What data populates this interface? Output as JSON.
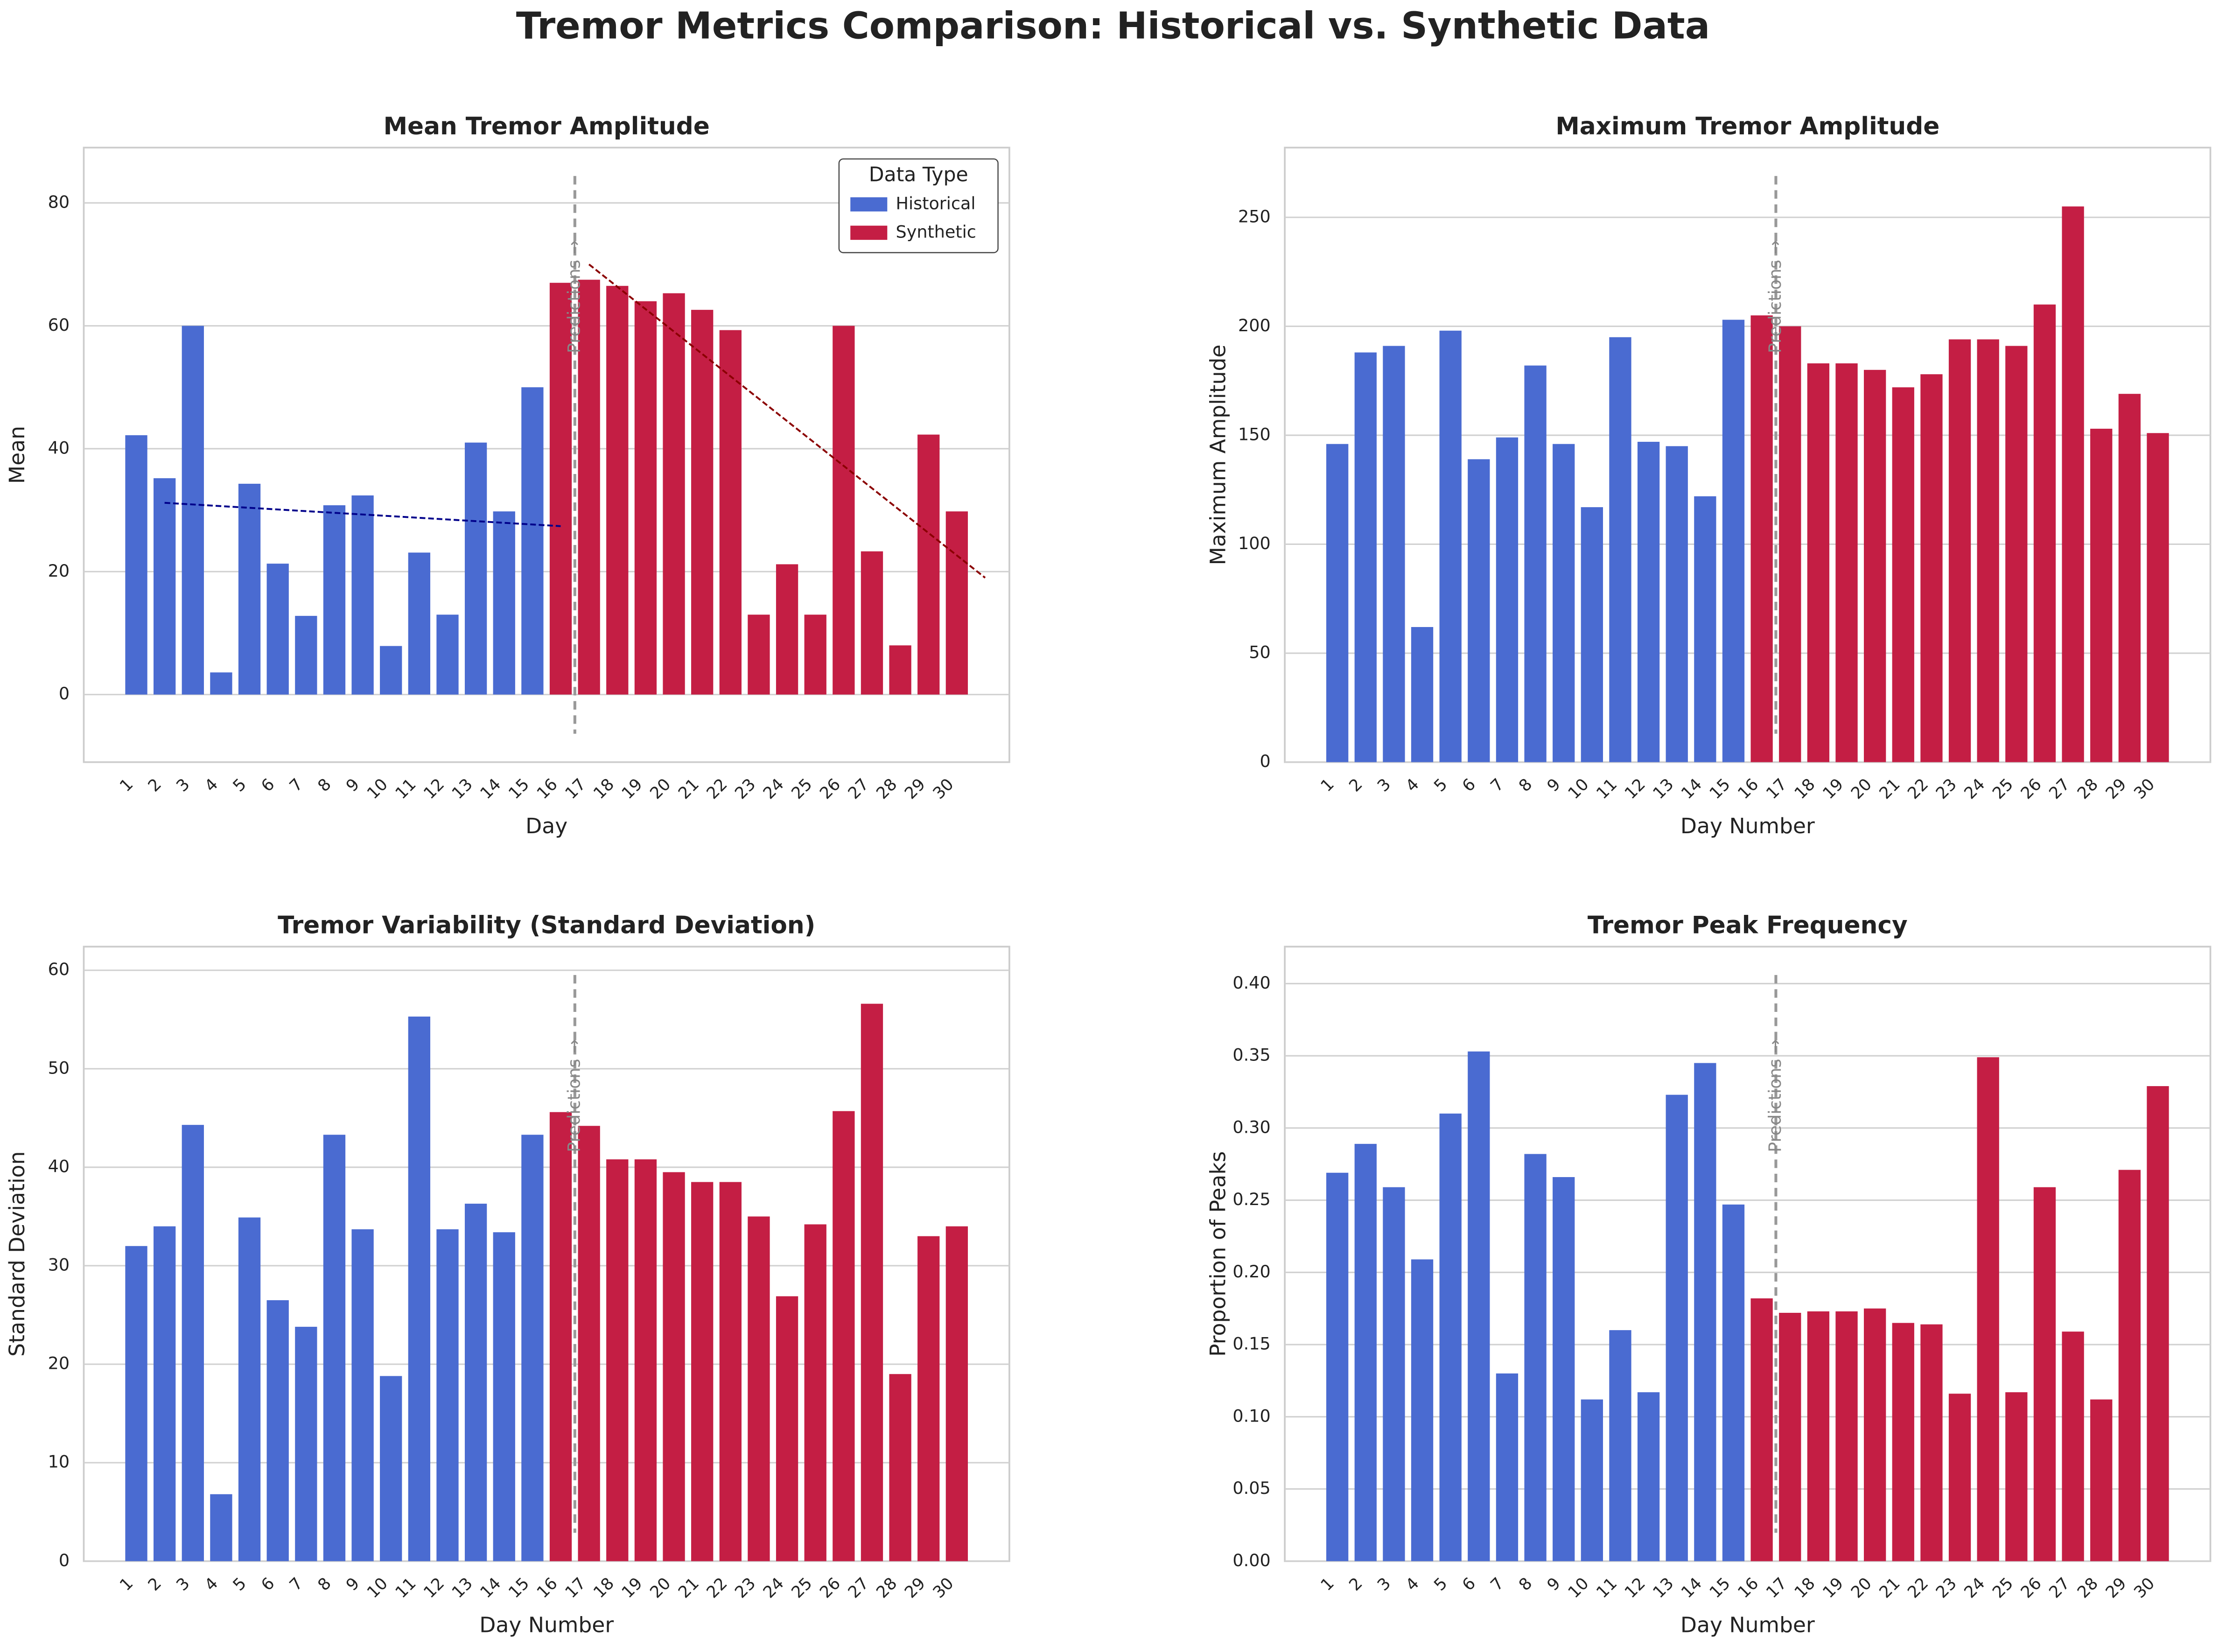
{
  "title": "Tremor Metrics Comparison: Historical vs. Synthetic Data",
  "chart_data": [
    {
      "type": "bar",
      "title": "Mean Tremor Amplitude",
      "x_label": "Day",
      "y_label": "Mean",
      "categories": [
        "1",
        "2",
        "3",
        "4",
        "5",
        "6",
        "7",
        "8",
        "9",
        "10",
        "11",
        "12",
        "13",
        "14",
        "15",
        "16",
        "17",
        "18",
        "19",
        "20",
        "21",
        "22",
        "23",
        "24",
        "25",
        "26",
        "27",
        "28",
        "29",
        "30"
      ],
      "series": [
        {
          "name": "Historical",
          "color": "#4a6bd1",
          "values": [
            42.2,
            35.2,
            60,
            3.6,
            34.3,
            21.3,
            12.8,
            30.8,
            32.4,
            7.9,
            23.1,
            13,
            41,
            29.8,
            50,
            null,
            null,
            null,
            null,
            null,
            null,
            null,
            null,
            null,
            null,
            null,
            null,
            null,
            null,
            null
          ]
        },
        {
          "name": "Synthetic",
          "color": "#c41e44",
          "values": [
            null,
            null,
            null,
            null,
            null,
            null,
            null,
            null,
            null,
            null,
            null,
            null,
            null,
            null,
            null,
            67,
            67.5,
            66.5,
            64,
            65.3,
            62.6,
            59.3,
            13,
            21.2,
            13,
            60,
            23.3,
            8,
            42.3,
            29.8
          ]
        }
      ],
      "ylim": [
        -11,
        89
      ],
      "yticks": [
        0,
        20,
        40,
        60,
        80
      ],
      "grid": true,
      "legend": {
        "title": "Data Type",
        "loc": "upper right"
      },
      "annotation": "Predictions →",
      "annotation_x": "17",
      "trend_lines": [
        {
          "color": "#00008b",
          "x": [
            1,
            15
          ],
          "values": [
            31.2,
            27.4
          ]
        },
        {
          "color": "#8b0000",
          "x": [
            16,
            30
          ],
          "values": [
            70,
            19
          ]
        }
      ]
    },
    {
      "type": "bar",
      "title": "Maximum Tremor Amplitude",
      "x_label": "Day Number",
      "y_label": "Maximum Amplitude",
      "categories": [
        "1",
        "2",
        "3",
        "4",
        "5",
        "6",
        "7",
        "8",
        "9",
        "10",
        "11",
        "12",
        "13",
        "14",
        "15",
        "16",
        "17",
        "18",
        "19",
        "20",
        "21",
        "22",
        "23",
        "24",
        "25",
        "26",
        "27",
        "28",
        "29",
        "30"
      ],
      "series": [
        {
          "name": "Historical",
          "color": "#4a6bd1",
          "values": [
            146,
            188,
            191,
            62,
            198,
            139,
            149,
            182,
            146,
            117,
            195,
            147,
            145,
            122,
            203,
            null,
            null,
            null,
            null,
            null,
            null,
            null,
            null,
            null,
            null,
            null,
            null,
            null,
            null,
            null
          ]
        },
        {
          "name": "Synthetic",
          "color": "#c41e44",
          "values": [
            null,
            null,
            null,
            null,
            null,
            null,
            null,
            null,
            null,
            null,
            null,
            null,
            null,
            null,
            null,
            205,
            200,
            183,
            183,
            180,
            172,
            178,
            194,
            194,
            191,
            210,
            255,
            153,
            169,
            151
          ]
        }
      ],
      "ylim": [
        0,
        282
      ],
      "yticks": [
        0,
        50,
        100,
        150,
        200,
        250
      ],
      "grid": true,
      "annotation": "Predictions →",
      "annotation_x": "17"
    },
    {
      "type": "bar",
      "title": "Tremor Variability (Standard Deviation)",
      "x_label": "Day Number",
      "y_label": "Standard Deviation",
      "categories": [
        "1",
        "2",
        "3",
        "4",
        "5",
        "6",
        "7",
        "8",
        "9",
        "10",
        "11",
        "12",
        "13",
        "14",
        "15",
        "16",
        "17",
        "18",
        "19",
        "20",
        "21",
        "22",
        "23",
        "24",
        "25",
        "26",
        "27",
        "28",
        "29",
        "30"
      ],
      "series": [
        {
          "name": "Historical",
          "color": "#4a6bd1",
          "values": [
            32,
            34,
            44.3,
            6.8,
            34.9,
            26.5,
            23.8,
            43.3,
            33.7,
            18.8,
            55.3,
            33.7,
            36.3,
            33.4,
            43.3,
            null,
            null,
            null,
            null,
            null,
            null,
            null,
            null,
            null,
            null,
            null,
            null,
            null,
            null,
            null
          ]
        },
        {
          "name": "Synthetic",
          "color": "#c41e44",
          "values": [
            null,
            null,
            null,
            null,
            null,
            null,
            null,
            null,
            null,
            null,
            null,
            null,
            null,
            null,
            null,
            45.6,
            44.2,
            40.8,
            40.8,
            39.5,
            38.5,
            38.5,
            35,
            26.9,
            34.2,
            45.7,
            56.6,
            19,
            33,
            34
          ]
        }
      ],
      "ylim": [
        0,
        62.4
      ],
      "yticks": [
        0,
        10,
        20,
        30,
        40,
        50,
        60
      ],
      "grid": true,
      "annotation": "Predictions →",
      "annotation_x": "17"
    },
    {
      "type": "bar",
      "title": "Tremor Peak Frequency",
      "x_label": "Day Number",
      "y_label": "Proportion of Peaks",
      "categories": [
        "1",
        "2",
        "3",
        "4",
        "5",
        "6",
        "7",
        "8",
        "9",
        "10",
        "11",
        "12",
        "13",
        "14",
        "15",
        "16",
        "17",
        "18",
        "19",
        "20",
        "21",
        "22",
        "23",
        "24",
        "25",
        "26",
        "27",
        "28",
        "29",
        "30"
      ],
      "series": [
        {
          "name": "Historical",
          "color": "#4a6bd1",
          "values": [
            0.269,
            0.289,
            0.259,
            0.209,
            0.31,
            0.353,
            0.13,
            0.282,
            0.266,
            0.112,
            0.16,
            0.117,
            0.323,
            0.345,
            0.247,
            null,
            null,
            null,
            null,
            null,
            null,
            null,
            null,
            null,
            null,
            null,
            null,
            null,
            null,
            null
          ]
        },
        {
          "name": "Synthetic",
          "color": "#c41e44",
          "values": [
            null,
            null,
            null,
            null,
            null,
            null,
            null,
            null,
            null,
            null,
            null,
            null,
            null,
            null,
            null,
            0.182,
            0.172,
            0.173,
            0.173,
            0.175,
            0.165,
            0.164,
            0.116,
            0.349,
            0.117,
            0.259,
            0.159,
            0.112,
            0.271,
            0.329
          ]
        }
      ],
      "ylim": [
        0,
        0.4256
      ],
      "yticks": [
        {
          "value": 0,
          "label": "0.00"
        },
        {
          "value": 0.05,
          "label": "0.05"
        },
        {
          "value": 0.1,
          "label": "0.10"
        },
        {
          "value": 0.15,
          "label": "0.15"
        },
        {
          "value": 0.2,
          "label": "0.20"
        },
        {
          "value": 0.25,
          "label": "0.25"
        },
        {
          "value": 0.3,
          "label": "0.30"
        },
        {
          "value": 0.35,
          "label": "0.35"
        },
        {
          "value": 0.4,
          "label": "0.40"
        }
      ],
      "grid": true,
      "annotation": "Predictions →",
      "annotation_x": "17"
    }
  ]
}
